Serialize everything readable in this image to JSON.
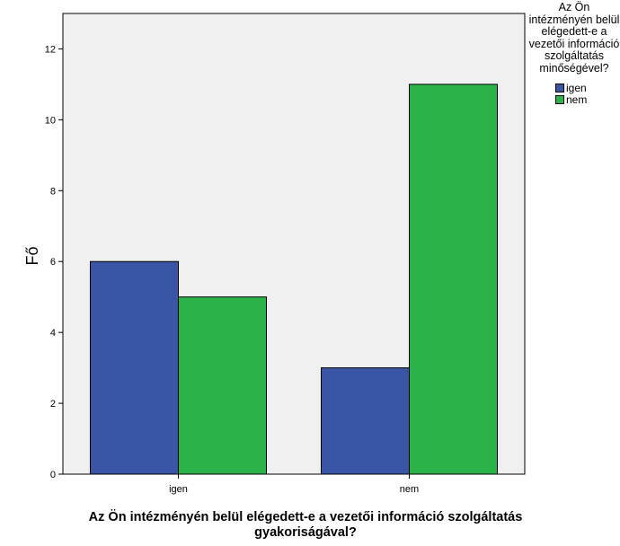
{
  "chart_data": {
    "type": "bar",
    "categories": [
      "igen",
      "nem"
    ],
    "series": [
      {
        "name": "igen",
        "values": [
          6,
          3
        ],
        "color": "#3a55a6"
      },
      {
        "name": "nem",
        "values": [
          5,
          11
        ],
        "color": "#2bb34a"
      }
    ],
    "xlabel": "Az Ön intézményén belül elégedett-e a vezetői információ szolgáltatás gyakoriságával?",
    "ylabel": "Fő",
    "ylim": [
      0,
      13
    ],
    "yticks": [
      0,
      2,
      4,
      6,
      8,
      10,
      12
    ],
    "legend_title": "Az Ön intézményén belül elégedett-e a vezetői információ szolgáltatás minőségével?",
    "legend_position": "top-right",
    "plot_background": "#f0f0f0",
    "grid": false
  }
}
